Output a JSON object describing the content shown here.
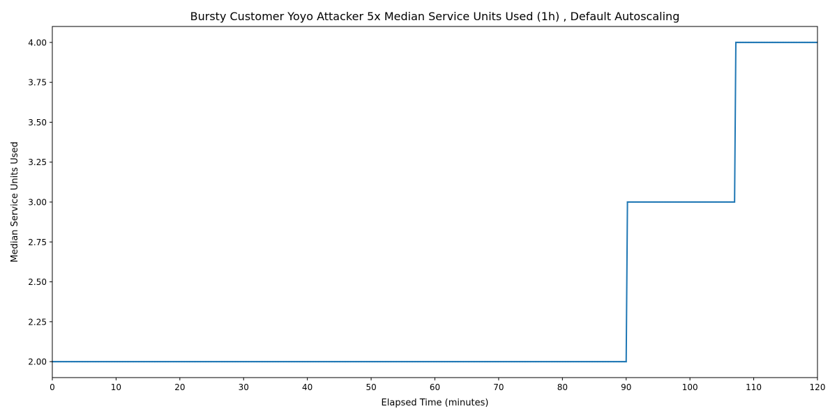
{
  "chart_data": {
    "type": "line",
    "title": "Bursty Customer Yoyo Attacker 5x Median Service Units Used (1h) , Default Autoscaling",
    "xlabel": "Elapsed Time (minutes)",
    "ylabel": "Median Service Units Used",
    "xlim": [
      0,
      120
    ],
    "ylim": [
      1.9,
      4.1
    ],
    "xticks": [
      0,
      10,
      20,
      30,
      40,
      50,
      60,
      70,
      80,
      90,
      100,
      110,
      120
    ],
    "xtick_labels": [
      "0",
      "10",
      "20",
      "30",
      "40",
      "50",
      "60",
      "70",
      "80",
      "90",
      "100",
      "110",
      "120"
    ],
    "yticks": [
      2.0,
      2.25,
      2.5,
      2.75,
      3.0,
      3.25,
      3.5,
      3.75,
      4.0
    ],
    "ytick_labels": [
      "2.00",
      "2.25",
      "2.50",
      "2.75",
      "3.00",
      "3.25",
      "3.50",
      "3.75",
      "4.00"
    ],
    "grid": false,
    "legend": "none",
    "series": [
      {
        "color": "#1f77b4",
        "marker": "small-dot",
        "x": [
          0,
          90,
          90.2,
          107,
          107.2,
          120
        ],
        "y": [
          2.0,
          2.0,
          3.0,
          3.0,
          4.0,
          4.0
        ]
      }
    ]
  }
}
